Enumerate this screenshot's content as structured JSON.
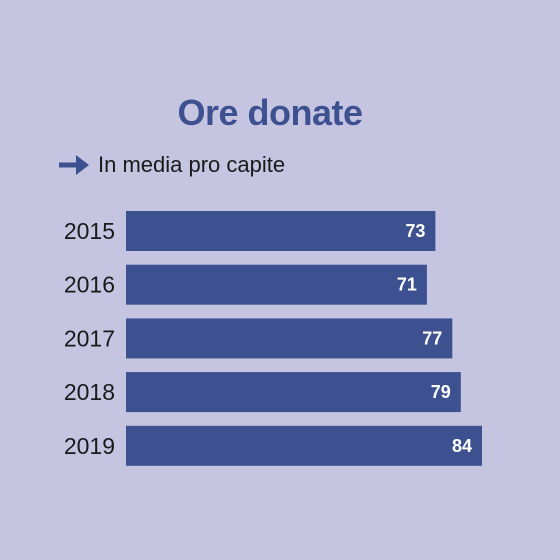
{
  "colors": {
    "background": "#c5c5e1",
    "bar": "#3d5191",
    "accent": "#3d5191",
    "value_label": "#ffffff",
    "category_label": "#1a1a1a"
  },
  "legend": {
    "icon": "arrow-right-icon",
    "label": "In media pro capite"
  },
  "chart_data": {
    "type": "bar",
    "orientation": "horizontal",
    "title": "Ore donate",
    "subtitle": "In media pro capite",
    "categories": [
      "2015",
      "2016",
      "2017",
      "2018",
      "2019"
    ],
    "values": [
      73,
      71,
      77,
      79,
      84
    ],
    "xlim": [
      0,
      84
    ],
    "grid": false,
    "data_labels": [
      "73",
      "71",
      "77",
      "79",
      "84"
    ]
  }
}
